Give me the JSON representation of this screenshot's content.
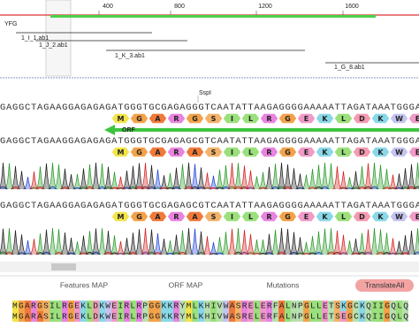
{
  "ruler": {
    "ticks": [
      "400",
      "800",
      "1200",
      "1600"
    ]
  },
  "feature": "YFG",
  "reads": [
    "1_I_1.ab1",
    "1_J_2.ab1",
    "1_K_3.ab1",
    "1_G_8.ab1"
  ],
  "alignment": {
    "enzyme": "SspI",
    "orf": "ORF",
    "reference": {
      "sequence": "GAGGCTAGAAGGAGAGAGATGGGTGCGAGAGGGTCAATATTAAGAGGGGAAAAATTAGATAAATGGGA",
      "translation": [
        "M",
        "G",
        "A",
        "R",
        "G",
        "S",
        "I",
        "L",
        "R",
        "G",
        "E",
        "K",
        "L",
        "D",
        "K",
        "W",
        "E"
      ]
    },
    "traces": [
      {
        "sequence": "GAGGCTAGAAGGAGAGAGATGGGTGCGAGAGCGTCAATATTAAGAGGGGAAAAATTAGATAAATGGGA",
        "translation": [
          "M",
          "G",
          "A",
          "R",
          "A",
          "S",
          "I",
          "L",
          "R",
          "G",
          "E",
          "K",
          "L",
          "D",
          "K",
          "W",
          "E"
        ]
      },
      {
        "sequence": "GAGGCTAGAAGGAGAGAGATGGGTGCGAGAGCGTCAATATTAAGAGGGGAAAAATTAGATAAATGGGA",
        "translation": [
          "M",
          "G",
          "A",
          "R",
          "A",
          "S",
          "I",
          "L",
          "R",
          "G",
          "E",
          "K",
          "L",
          "D",
          "K",
          "W",
          "E"
        ]
      }
    ]
  },
  "tabs": [
    "Features MAP",
    "ORF MAP",
    "Mutations",
    "TranslateAll"
  ],
  "proteins": [
    "MGARGSILRGEKLDKWEIRLRPGGKKRYMLKHIVWASRELERFALNPGLLETSKGCKQIIGQLQ",
    "MGARASILRGEKLDKWEIRLRPGGKKRYMLKHIVWASRELERFALNPGLLETSEGCKQIIGQLQ"
  ]
}
